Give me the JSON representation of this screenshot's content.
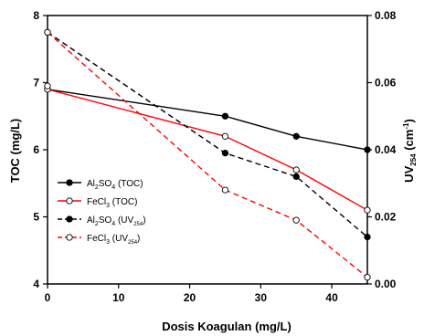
{
  "chart_data": {
    "type": "line",
    "xlabel": "Dosis Koagulan (mg/L)",
    "ylabel": "TOC (mg/L)",
    "ylabel_right_main": "UV",
    "ylabel_right_sub": "254",
    "ylabel_right_unit_open": " (cm",
    "ylabel_right_unit_sup": "-1",
    "ylabel_right_unit_close": ")",
    "xlim": [
      0,
      45
    ],
    "ylim_left": [
      4,
      8
    ],
    "ylim_right": [
      0.0,
      0.08
    ],
    "x_ticks": [
      0,
      10,
      20,
      30,
      40
    ],
    "y_left_ticks": [
      4,
      5,
      6,
      7,
      8
    ],
    "y_right_ticks": [
      "0.00",
      "0.02",
      "0.04",
      "0.06",
      "0.08"
    ],
    "legend_position": "lower-left",
    "series": [
      {
        "name": "Al2SO4 (TOC)",
        "label_main": "Al",
        "label_sub": "2",
        "label_mid": "SO",
        "label_sub2": "4",
        "label_tail": " (TOC)",
        "axis": "left",
        "color": "#000000",
        "dash": "solid",
        "marker": "filled",
        "x": [
          0,
          25,
          35,
          45
        ],
        "y": [
          6.9,
          6.5,
          6.2,
          6.0
        ]
      },
      {
        "name": "FeCl3 (TOC)",
        "label_main": "FeCl",
        "label_sub": "3",
        "label_mid": "",
        "label_sub2": "",
        "label_tail": " (TOC)",
        "axis": "left",
        "color": "#ff0000",
        "dash": "solid",
        "marker": "open",
        "x": [
          0,
          25,
          35,
          45
        ],
        "y": [
          6.9,
          6.2,
          5.7,
          5.1
        ]
      },
      {
        "name": "Al2SO4 (UV254)",
        "label_main": "Al",
        "label_sub": "2",
        "label_mid": "SO",
        "label_sub2": "4",
        "label_tail": " (UV",
        "label_tail_sub": "254",
        "label_tail_close": ")",
        "axis": "right",
        "color": "#000000",
        "dash": "dashed",
        "marker": "filled",
        "x": [
          0,
          25,
          35,
          45
        ],
        "y": [
          0.075,
          0.039,
          0.032,
          0.014
        ]
      },
      {
        "name": "FeCl3 (UV254)",
        "label_main": "FeCl",
        "label_sub": "3",
        "label_mid": "",
        "label_sub2": "",
        "label_tail": " (UV",
        "label_tail_sub": "254",
        "label_tail_close": ")",
        "axis": "right",
        "color": "#ff0000",
        "dash": "dashed",
        "marker": "open",
        "x": [
          0,
          25,
          35,
          45
        ],
        "y": [
          0.075,
          0.028,
          0.019,
          0.002
        ]
      }
    ],
    "extra_points": [
      {
        "axis": "left",
        "marker": "open",
        "color": "#000000",
        "x": 0,
        "y": 6.95
      }
    ]
  }
}
